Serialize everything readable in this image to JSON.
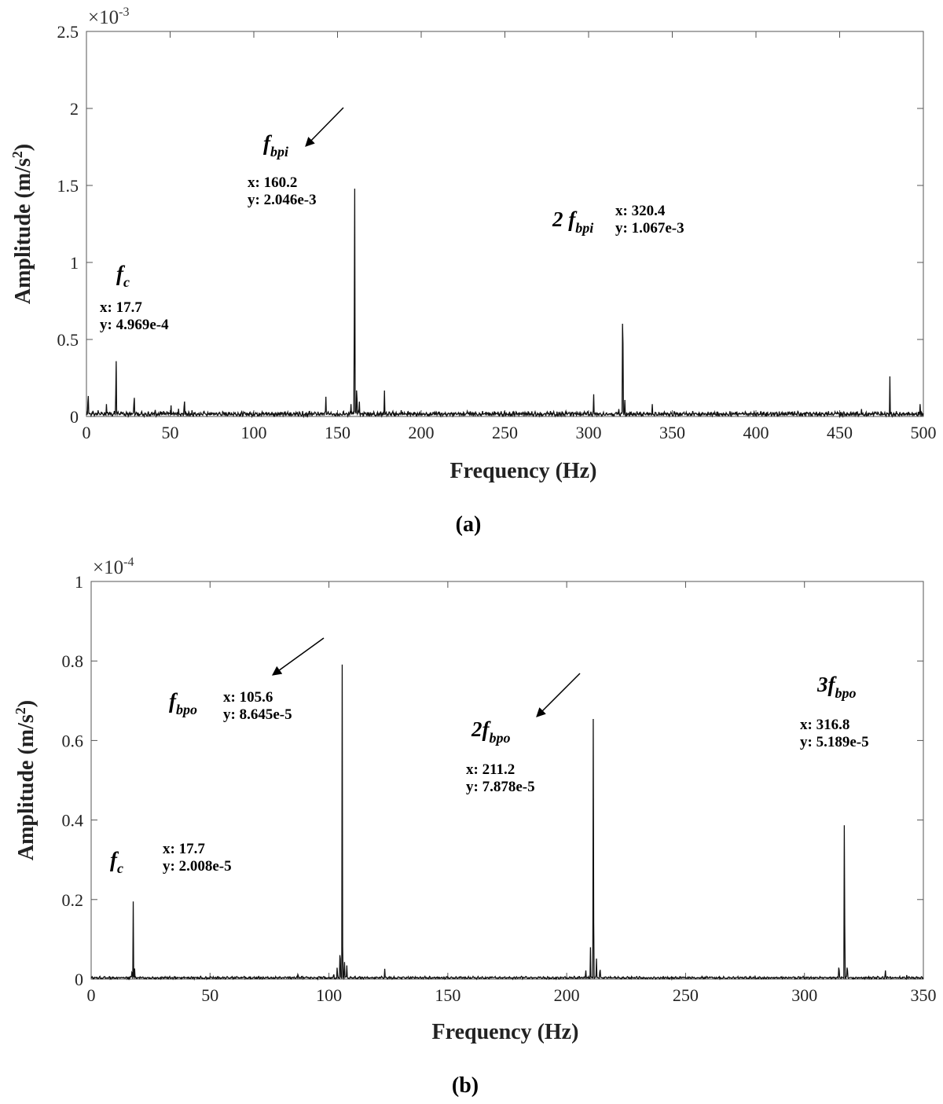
{
  "chart_data": [
    {
      "type": "line",
      "panel_label": "(a)",
      "xlabel": "Frequency (Hz)",
      "ylabel": "Amplitude (m/s",
      "ylabel_sup": "2",
      "ylabel_end": ")",
      "multiplier": "×10",
      "multiplier_exp": "-3",
      "xlim": [
        0,
        500
      ],
      "ylim": [
        0,
        2.5
      ],
      "x_ticks": [
        0,
        50,
        100,
        150,
        200,
        250,
        300,
        350,
        400,
        450,
        500
      ],
      "y_ticks": [
        0,
        0.5,
        1,
        1.5,
        2,
        2.5
      ],
      "y_tick_labels": [
        "0",
        "0.5",
        "1",
        "1.5",
        "2",
        "2.5"
      ],
      "grid": false,
      "peaks": [
        [
          1,
          0.22
        ],
        [
          4,
          0.06
        ],
        [
          7,
          0.05
        ],
        [
          9,
          0.05
        ],
        [
          12,
          0.1
        ],
        [
          14,
          0.05
        ],
        [
          17.7,
          0.4969
        ],
        [
          19,
          0.05
        ],
        [
          28.5,
          0.2
        ],
        [
          33,
          0.04
        ],
        [
          37,
          0.04
        ],
        [
          41,
          0.07
        ],
        [
          45,
          0.03
        ],
        [
          50.5,
          0.09
        ],
        [
          55,
          0.05
        ],
        [
          58.5,
          0.16
        ],
        [
          63,
          0.05
        ],
        [
          70,
          0.03
        ],
        [
          88,
          0.03
        ],
        [
          101,
          0.04
        ],
        [
          105,
          0.03
        ],
        [
          133,
          0.04
        ],
        [
          143,
          0.16
        ],
        [
          158,
          0.1
        ],
        [
          160.2,
          2.046
        ],
        [
          161.5,
          0.28
        ],
        [
          163,
          0.12
        ],
        [
          178,
          0.21
        ],
        [
          188,
          0.05
        ],
        [
          193,
          0.03
        ],
        [
          218,
          0.03
        ],
        [
          262,
          0.03
        ],
        [
          287,
          0.03
        ],
        [
          303,
          0.18
        ],
        [
          318,
          0.06
        ],
        [
          320.4,
          1.067
        ],
        [
          321.6,
          0.14
        ],
        [
          338,
          0.1
        ],
        [
          463,
          0.06
        ],
        [
          480,
          0.26
        ],
        [
          498,
          0.1
        ]
      ],
      "annotations": [
        {
          "label_main": "f",
          "label_sub": "c",
          "x_text": "x: 17.7",
          "y_text": "y: 4.969e-4"
        },
        {
          "label_main": "f",
          "label_sub": "bpi",
          "x_text": "x: 160.2",
          "y_text": "y:  2.046e-3"
        },
        {
          "label_main": "2 f",
          "label_sub": "bpi",
          "x_text": "x: 320.4",
          "y_text": "y: 1.067e-3"
        }
      ]
    },
    {
      "type": "line",
      "panel_label": "(b)",
      "xlabel": "Frequency (Hz)",
      "ylabel": "Amplitude (m/s",
      "ylabel_sup": "2",
      "ylabel_end": ")",
      "multiplier": "×10",
      "multiplier_exp": "-4",
      "xlim": [
        0,
        350
      ],
      "ylim": [
        0,
        1
      ],
      "x_ticks": [
        0,
        50,
        100,
        150,
        200,
        250,
        300,
        350
      ],
      "y_ticks": [
        0,
        0.2,
        0.4,
        0.6,
        0.8,
        1
      ],
      "y_tick_labels": [
        "0",
        "0.2",
        "0.4",
        "0.6",
        "0.8",
        "1"
      ],
      "grid": false,
      "peaks": [
        [
          17.2,
          0.03
        ],
        [
          17.7,
          0.2008
        ],
        [
          18.3,
          0.03
        ],
        [
          87,
          0.02
        ],
        [
          102,
          0.02
        ],
        [
          103.5,
          0.04
        ],
        [
          104.7,
          0.11
        ],
        [
          105.6,
          0.8645
        ],
        [
          106.5,
          0.06
        ],
        [
          107.5,
          0.04
        ],
        [
          123.5,
          0.03
        ],
        [
          208,
          0.03
        ],
        [
          210,
          0.08
        ],
        [
          211.2,
          0.7878
        ],
        [
          212.5,
          0.06
        ],
        [
          214,
          0.04
        ],
        [
          314.5,
          0.05
        ],
        [
          316.8,
          0.5189
        ],
        [
          318,
          0.05
        ],
        [
          334,
          0.03
        ],
        [
          343,
          0.01
        ]
      ],
      "annotations": [
        {
          "label_main": "f",
          "label_sub": "c",
          "x_text": "x: 17.7",
          "y_text": "y: 2.008e-5"
        },
        {
          "label_main": "f",
          "label_sub": "bpo",
          "x_text": "x: 105.6",
          "y_text": "y: 8.645e-5"
        },
        {
          "label_main": "2f",
          "label_sub": "bpo",
          "x_text": "x: 211.2",
          "y_text": "y: 7.878e-5"
        },
        {
          "label_main": "3f",
          "label_sub": "bpo",
          "x_text": "x: 316.8",
          "y_text": "y: 5.189e-5"
        }
      ]
    }
  ]
}
